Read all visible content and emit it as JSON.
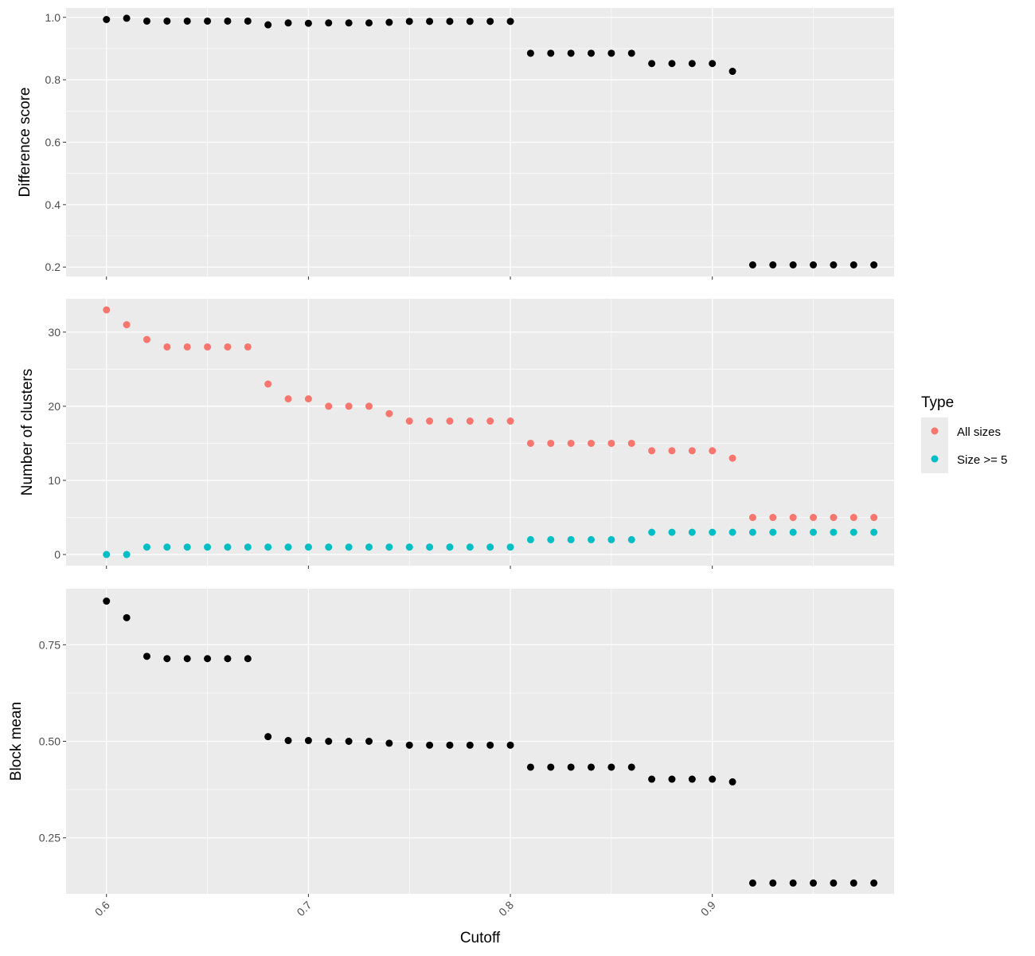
{
  "chart_data": [
    {
      "type": "scatter",
      "ylabel": "Difference score",
      "xlim": [
        0.58,
        0.99
      ],
      "ylim": [
        0.17,
        1.03
      ],
      "yticks": [
        0.2,
        0.4,
        0.6,
        0.8,
        1.0
      ],
      "ytick_labels": [
        "0.2",
        "0.4",
        "0.6",
        "0.8",
        "1.0"
      ],
      "grid": true,
      "series": [
        {
          "color": "#000000",
          "x": [
            0.6,
            0.61,
            0.62,
            0.63,
            0.64,
            0.65,
            0.66,
            0.67,
            0.68,
            0.69,
            0.7,
            0.71,
            0.72,
            0.73,
            0.74,
            0.75,
            0.76,
            0.77,
            0.78,
            0.79,
            0.8,
            0.81,
            0.82,
            0.83,
            0.84,
            0.85,
            0.86,
            0.87,
            0.88,
            0.89,
            0.9,
            0.91,
            0.92,
            0.93,
            0.94,
            0.95,
            0.96,
            0.97,
            0.98
          ],
          "y": [
            0.993,
            0.997,
            0.988,
            0.988,
            0.988,
            0.988,
            0.988,
            0.988,
            0.976,
            0.982,
            0.981,
            0.982,
            0.982,
            0.982,
            0.984,
            0.987,
            0.987,
            0.987,
            0.987,
            0.987,
            0.987,
            0.885,
            0.885,
            0.885,
            0.885,
            0.885,
            0.885,
            0.852,
            0.852,
            0.852,
            0.852,
            0.827,
            0.207,
            0.207,
            0.207,
            0.207,
            0.207,
            0.207,
            0.207
          ]
        }
      ]
    },
    {
      "type": "scatter",
      "ylabel": "Number of clusters",
      "xlim": [
        0.58,
        0.99
      ],
      "ylim": [
        -1.5,
        34.5
      ],
      "yticks": [
        0,
        10,
        20,
        30
      ],
      "ytick_labels": [
        "0",
        "10",
        "20",
        "30"
      ],
      "grid": true,
      "legend": {
        "title": "Type",
        "placement": "right"
      },
      "series": [
        {
          "name": "All sizes",
          "color": "#F8766D",
          "x": [
            0.6,
            0.61,
            0.62,
            0.63,
            0.64,
            0.65,
            0.66,
            0.67,
            0.68,
            0.69,
            0.7,
            0.71,
            0.72,
            0.73,
            0.74,
            0.75,
            0.76,
            0.77,
            0.78,
            0.79,
            0.8,
            0.81,
            0.82,
            0.83,
            0.84,
            0.85,
            0.86,
            0.87,
            0.88,
            0.89,
            0.9,
            0.91,
            0.92,
            0.93,
            0.94,
            0.95,
            0.96,
            0.97,
            0.98
          ],
          "y": [
            33,
            31,
            29,
            28,
            28,
            28,
            28,
            28,
            23,
            21,
            21,
            20,
            20,
            20,
            19,
            18,
            18,
            18,
            18,
            18,
            18,
            15,
            15,
            15,
            15,
            15,
            15,
            14,
            14,
            14,
            14,
            13,
            5,
            5,
            5,
            5,
            5,
            5,
            5
          ]
        },
        {
          "name": "Size >= 5",
          "color": "#00BFC4",
          "x": [
            0.6,
            0.61,
            0.62,
            0.63,
            0.64,
            0.65,
            0.66,
            0.67,
            0.68,
            0.69,
            0.7,
            0.71,
            0.72,
            0.73,
            0.74,
            0.75,
            0.76,
            0.77,
            0.78,
            0.79,
            0.8,
            0.81,
            0.82,
            0.83,
            0.84,
            0.85,
            0.86,
            0.87,
            0.88,
            0.89,
            0.9,
            0.91,
            0.92,
            0.93,
            0.94,
            0.95,
            0.96,
            0.97,
            0.98
          ],
          "y": [
            0,
            0,
            1,
            1,
            1,
            1,
            1,
            1,
            1,
            1,
            1,
            1,
            1,
            1,
            1,
            1,
            1,
            1,
            1,
            1,
            1,
            2,
            2,
            2,
            2,
            2,
            2,
            3,
            3,
            3,
            3,
            3,
            3,
            3,
            3,
            3,
            3,
            3,
            3
          ]
        }
      ]
    },
    {
      "type": "scatter",
      "xlabel": "Cutoff",
      "ylabel": "Block mean",
      "xlim": [
        0.58,
        0.99
      ],
      "ylim": [
        0.105,
        0.895
      ],
      "xticks": [
        0.6,
        0.7,
        0.8,
        0.9
      ],
      "xtick_labels": [
        "0.6",
        "0.7",
        "0.8",
        "0.9"
      ],
      "yticks": [
        0.25,
        0.5,
        0.75
      ],
      "ytick_labels": [
        "0.25",
        "0.50",
        "0.75"
      ],
      "grid": true,
      "series": [
        {
          "color": "#000000",
          "x": [
            0.6,
            0.61,
            0.62,
            0.63,
            0.64,
            0.65,
            0.66,
            0.67,
            0.68,
            0.69,
            0.7,
            0.71,
            0.72,
            0.73,
            0.74,
            0.75,
            0.76,
            0.77,
            0.78,
            0.79,
            0.8,
            0.81,
            0.82,
            0.83,
            0.84,
            0.85,
            0.86,
            0.87,
            0.88,
            0.89,
            0.9,
            0.91,
            0.92,
            0.93,
            0.94,
            0.95,
            0.96,
            0.97,
            0.98
          ],
          "y": [
            0.863,
            0.82,
            0.72,
            0.714,
            0.714,
            0.714,
            0.714,
            0.714,
            0.512,
            0.502,
            0.502,
            0.5,
            0.5,
            0.5,
            0.495,
            0.49,
            0.49,
            0.49,
            0.49,
            0.49,
            0.49,
            0.433,
            0.433,
            0.433,
            0.433,
            0.433,
            0.433,
            0.402,
            0.402,
            0.402,
            0.402,
            0.395,
            0.133,
            0.133,
            0.133,
            0.133,
            0.133,
            0.133,
            0.133
          ]
        }
      ]
    }
  ]
}
